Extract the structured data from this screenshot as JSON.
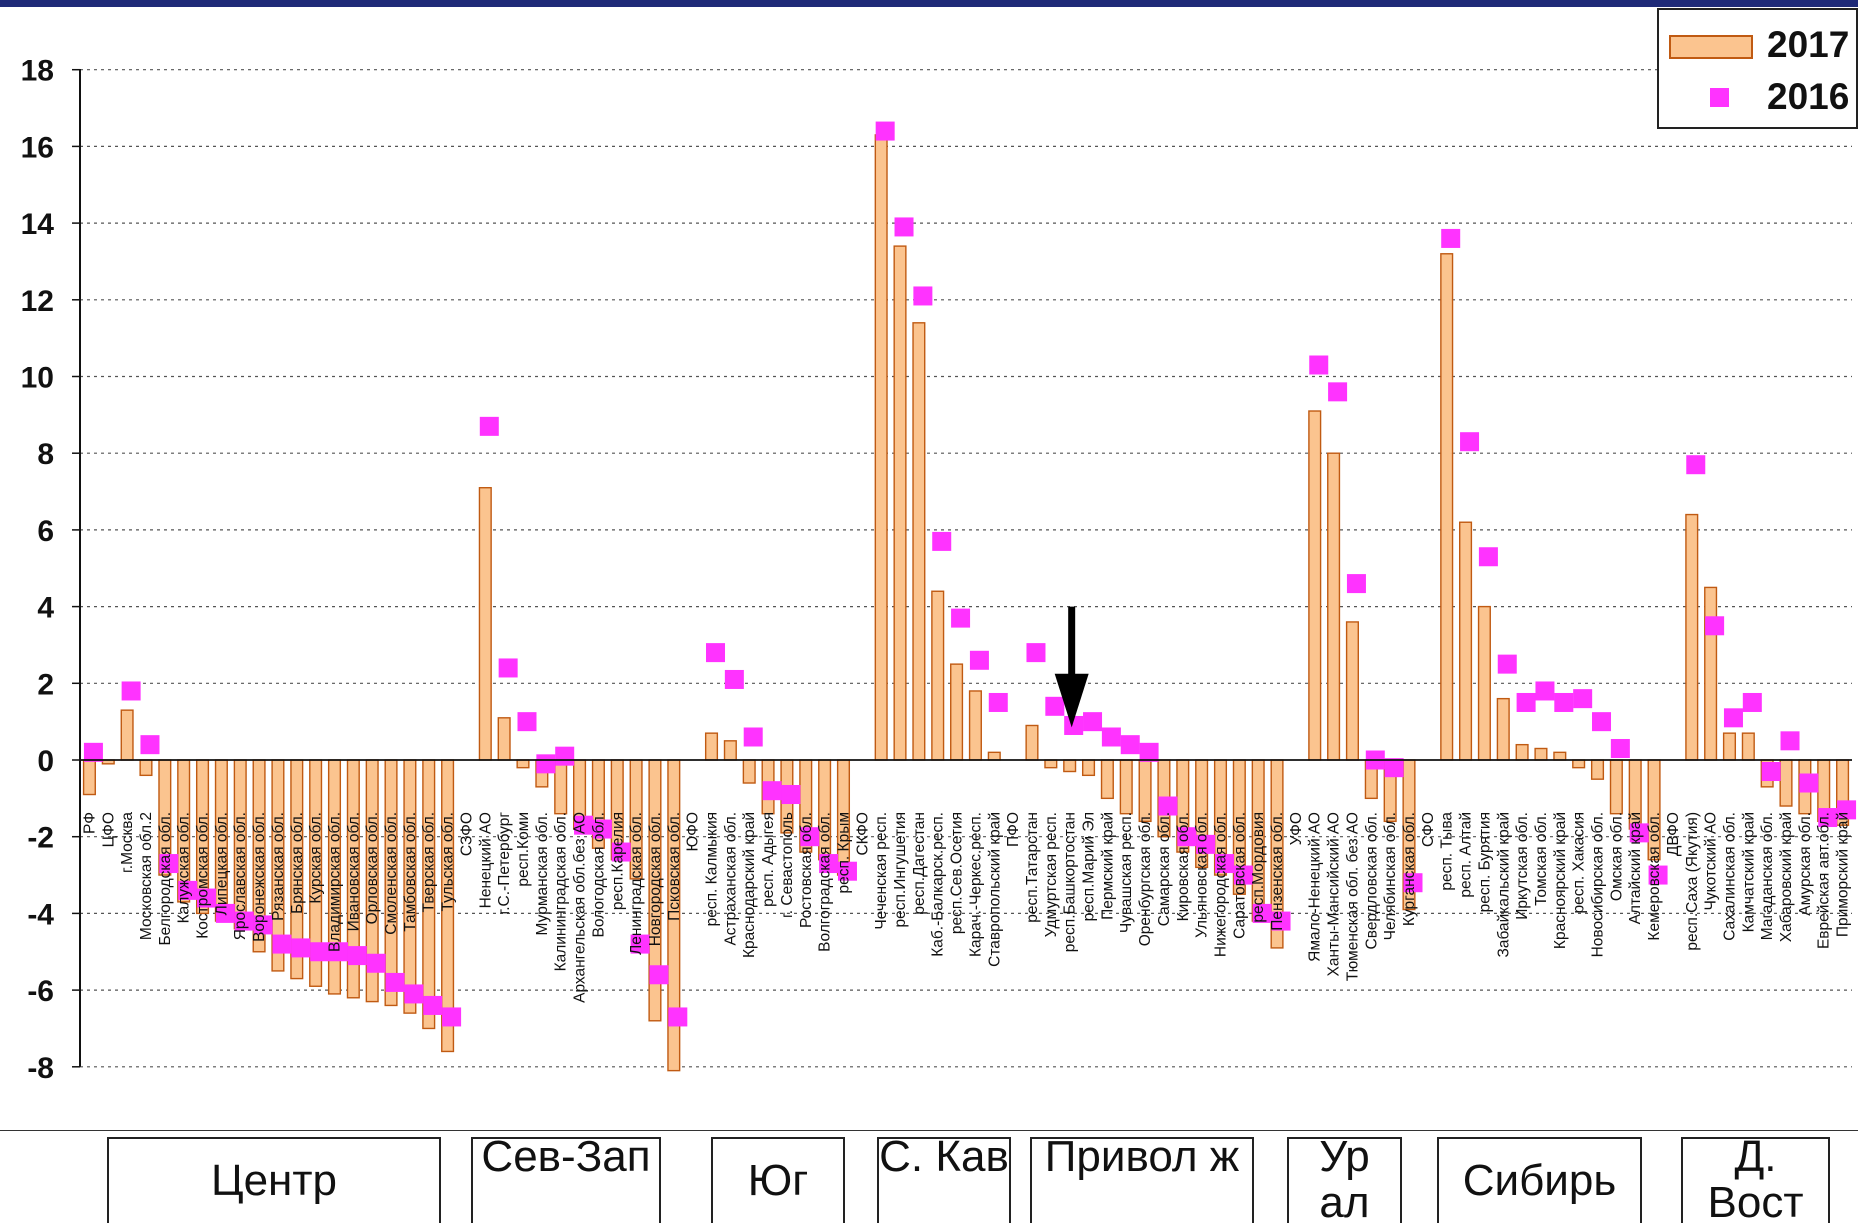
{
  "legend": {
    "bar_label": "2017",
    "point_label": "2016"
  },
  "colors": {
    "bar_fill": "#fbc48f",
    "bar_edge": "#c05a12",
    "point": "#ff33ff",
    "arrow": "#000000",
    "grid": "#555555"
  },
  "districts": [
    {
      "label": "Центр"
    },
    {
      "label": "Сев-Зап"
    },
    {
      "label": "Юг"
    },
    {
      "label": "С. Кав"
    },
    {
      "label": "Привол ж"
    },
    {
      "label": "Ур ал"
    },
    {
      "label": "Сибирь"
    },
    {
      "label": "Д. Вост"
    }
  ],
  "chart_data": {
    "type": "bar",
    "title": "",
    "xlabel": "",
    "ylabel": "",
    "ylim": [
      -8,
      18
    ],
    "yticks": [
      -8,
      -6,
      -4,
      -2,
      0,
      2,
      4,
      6,
      8,
      10,
      12,
      14,
      16,
      18
    ],
    "grid": "horizontal dotted",
    "legend_position": "top-right",
    "annotation": "arrow pointing down at респ.Башкортостан",
    "categories": [
      "РФ",
      "ЦФО",
      "г.Москва",
      "Московская обл.2",
      "Белгородская обл.",
      "Калужская обл.",
      "Костромская обл.",
      "Липецкая обл.",
      "Ярославская обл.",
      "Воронежская обл.",
      "Рязанская обл.",
      "Брянская обл.",
      "Курская обл.",
      "Владимирская обл.",
      "Ивановская обл.",
      "Орловская обл.",
      "Смоленская обл.",
      "Тамбовская обл.",
      "Тверская обл.",
      "Тульская обл.",
      "СЗФО",
      "Ненецкий АО",
      "г.С.-Петербург",
      "респ.Коми",
      "Мурманская обл.",
      "Калининградская обл.",
      "Архангельская обл.без АО",
      "Вологодская обл.",
      "респ.Карелия",
      "Ленинградская обл.",
      "Новгородская обл.",
      "Псковская обл.",
      "ЮФО",
      "респ. Калмыкия",
      "Астраханская обл.",
      "Краснодарский край",
      "респ. Адыгея",
      "г. Севастополь",
      "Ростовская обл.",
      "Волгоградская обл.",
      "респ. Крым",
      "СКФО",
      "Чеченская респ.",
      "респ.Ингушетия",
      "респ.Дагестан",
      "Каб.-Балкарск.респ.",
      "респ.Сев.Осетия",
      "Карач.-Черкес.респ.",
      "Ставропольский край",
      "ПФО",
      "респ.Татарстан",
      "Удмуртская респ.",
      "респ.Башкортостан",
      "респ.Марий Эл",
      "Пермский край",
      "Чувашская респ.",
      "Оренбургская обл.",
      "Самарская обл.",
      "Кировская обл.",
      "Ульяновская обл.",
      "Нижегородская обл.",
      "Саратовская обл.",
      "респ.Мордовия",
      "Пензенская обл.",
      "УФО",
      "Ямало-Ненецкий АО",
      "Ханты-Мансийский АО",
      "Тюменская обл. без АО",
      "Свердловская обл.",
      "Челябинская обл.",
      "Курганская обл.",
      "СФО",
      "респ. Тыва",
      "респ. Алтай",
      "респ. Бурятия",
      "Забайкальский край",
      "Иркутская обл.",
      "Томская обл.",
      "Красноярский край",
      "респ. Хакасия",
      "Новосибирская обл.",
      "Омская обл.",
      "Алтайский край",
      "Кемеровская обл.",
      "ДВФО",
      "респ.Саха (Якутия)",
      "Чукотский АО",
      "Сахалинская обл.",
      "Камчатский край",
      "Магаданская обл.",
      "Хабаровский край",
      "Амурская обл.",
      "Еврейская авт.обл.",
      "Приморский край"
    ],
    "series": [
      {
        "name": "2017",
        "kind": "bar",
        "values": [
          -0.9,
          -0.1,
          1.3,
          -0.4,
          -3.0,
          -3.7,
          -4.0,
          -4.2,
          -4.4,
          -5.0,
          -5.5,
          -5.7,
          -5.9,
          -6.1,
          -6.2,
          -6.3,
          -6.4,
          -6.6,
          -7.0,
          -7.6,
          0.0,
          7.1,
          1.1,
          -0.2,
          -0.7,
          -1.4,
          -1.8,
          -2.3,
          -2.6,
          -3.1,
          -6.8,
          -8.1,
          0.0,
          0.7,
          0.5,
          -0.6,
          -1.4,
          -1.9,
          -2.4,
          -2.6,
          -3.0,
          0.0,
          16.3,
          13.4,
          11.4,
          4.4,
          2.5,
          1.8,
          0.2,
          0.0,
          0.9,
          -0.2,
          -0.3,
          -0.4,
          -1.0,
          -1.4,
          -1.6,
          -2.0,
          -2.4,
          -2.8,
          -3.0,
          -3.5,
          -4.2,
          -4.9,
          0.0,
          9.1,
          8.0,
          3.6,
          -1.0,
          -1.6,
          -3.9,
          0.0,
          13.2,
          6.2,
          4.0,
          1.6,
          0.4,
          0.3,
          0.2,
          -0.2,
          -0.5,
          -1.4,
          -1.8,
          -2.6,
          0.0,
          6.4,
          4.5,
          0.7,
          0.7,
          -0.7,
          -1.2,
          -1.4,
          -1.6,
          -1.7
        ]
      },
      {
        "name": "2016",
        "kind": "point",
        "values": [
          0.2,
          null,
          1.8,
          0.4,
          -2.7,
          -3.4,
          -3.6,
          -4.0,
          -4.2,
          -4.3,
          -4.8,
          -4.9,
          -5.0,
          -5.0,
          -5.1,
          -5.3,
          -5.8,
          -6.1,
          -6.4,
          -6.7,
          null,
          8.7,
          2.4,
          1.0,
          -0.1,
          0.1,
          -1.7,
          -1.8,
          -2.4,
          -4.8,
          -5.6,
          -6.7,
          null,
          2.8,
          2.1,
          0.6,
          -0.8,
          -0.9,
          -2.0,
          -2.7,
          -2.9,
          null,
          16.4,
          13.9,
          12.1,
          5.7,
          3.7,
          2.6,
          1.5,
          null,
          2.8,
          1.4,
          0.9,
          1.0,
          0.6,
          0.4,
          0.2,
          -1.2,
          -2.0,
          -2.2,
          -2.7,
          -3.0,
          -4.0,
          -4.2,
          null,
          10.3,
          9.6,
          4.6,
          0.0,
          -0.2,
          -3.2,
          null,
          13.6,
          8.3,
          5.3,
          2.5,
          1.5,
          1.8,
          1.5,
          1.6,
          1.0,
          0.3,
          -1.9,
          -3.0,
          null,
          7.7,
          3.5,
          1.1,
          1.5,
          -0.3,
          0.5,
          -0.6,
          -1.5,
          -1.3
        ]
      }
    ]
  }
}
